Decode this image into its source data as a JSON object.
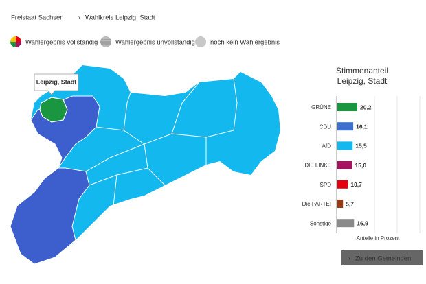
{
  "breadcrumb": [
    "Freistaat Sachsen",
    "Wahlkreis Leipzig, Stadt"
  ],
  "legend": [
    "Wahlergebnis vollständig",
    "Wahlergebnis unvollständig",
    "noch kein Wahlergebnis"
  ],
  "map": {
    "tooltip": "Leipzig, Stadt"
  },
  "button": "Zu den Gemeinden",
  "chart_data": {
    "type": "bar",
    "orientation": "horizontal",
    "title": [
      "Stimmenanteil",
      "Leipzig, Stadt"
    ],
    "x_label": "Anteile in Prozent",
    "categories": [
      "GRÜNE",
      "CDU",
      "AfD",
      "DIE LINKE",
      "SPD",
      "Die PARTEI",
      "Sonstige"
    ],
    "values": [
      20.2,
      16.1,
      15.5,
      15.0,
      10.7,
      5.7,
      16.9
    ],
    "value_labels": [
      "20,2",
      "16,1",
      "15,5",
      "15,0",
      "10,7",
      "5,7",
      "16,9"
    ],
    "colors": [
      "#1a9641",
      "#3d6fcc",
      "#13b8ee",
      "#a5125e",
      "#e3000f",
      "#9b3a12",
      "#8a8a8a"
    ],
    "xlim": [
      0,
      85
    ]
  }
}
